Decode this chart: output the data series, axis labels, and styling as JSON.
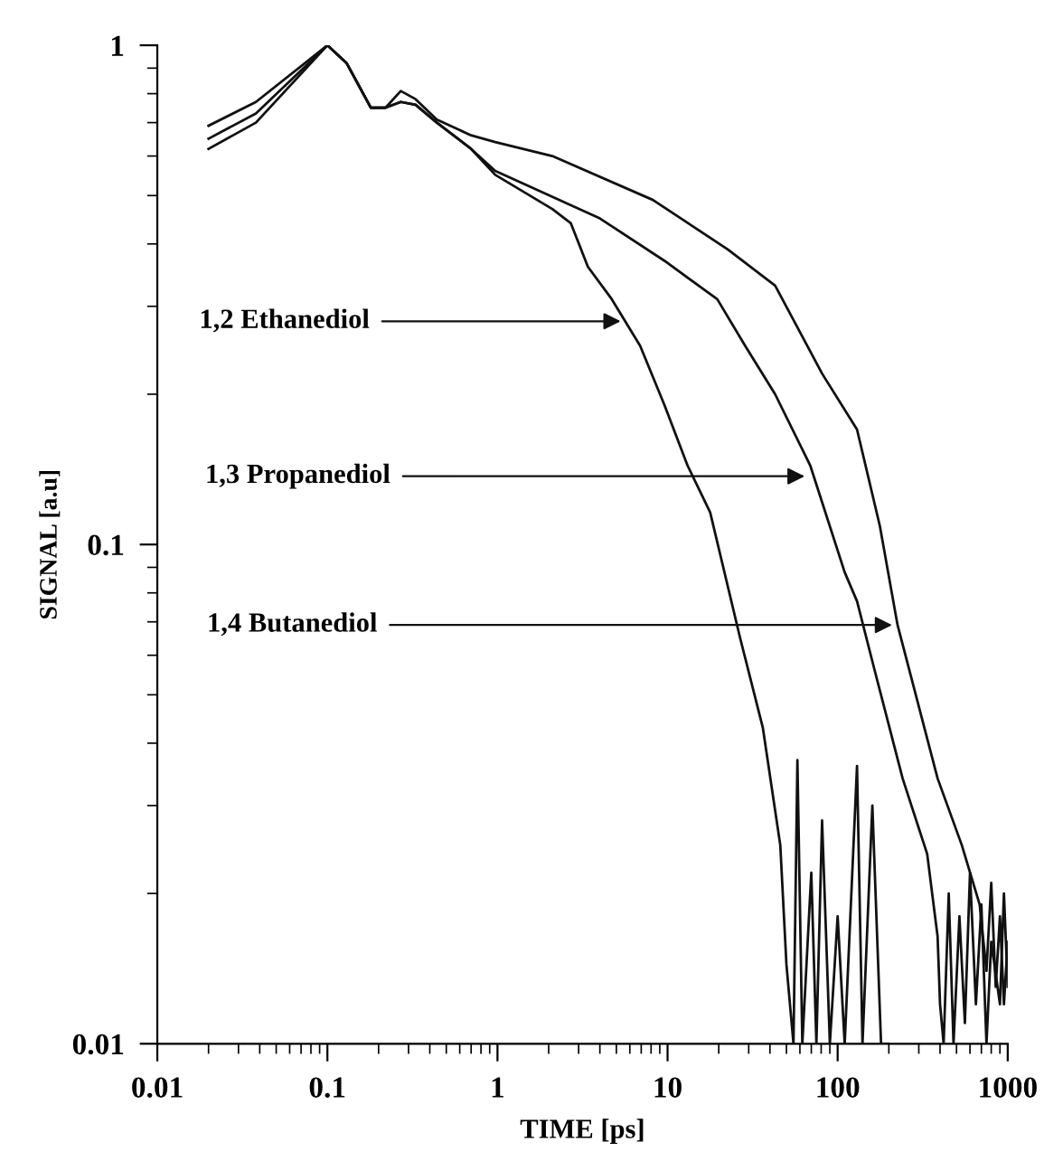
{
  "chart_data": {
    "type": "line",
    "xlabel": "TIME [ps]",
    "ylabel": "SIGNAL [a.u]",
    "log": "xy",
    "grid": false,
    "legend": false,
    "marker": "none",
    "line_style": "solid",
    "xlim": [
      0.01,
      1000
    ],
    "ylim": [
      0.01,
      1
    ],
    "xticks": [
      0.01,
      0.1,
      1,
      10,
      100,
      1000
    ],
    "yticks": [
      0.01,
      0.1,
      1
    ],
    "series": [
      {
        "color": "#111111",
        "x": [
          0.02,
          0.038,
          0.1,
          0.13,
          0.18,
          0.22,
          0.27,
          0.33,
          0.44,
          0.7,
          0.97,
          2.1,
          2.7,
          3.4,
          4.7,
          6.9,
          9.6,
          13.1,
          17.8,
          26.7,
          36.3,
          46,
          50,
          55,
          58,
          62,
          70,
          75,
          81,
          90,
          100,
          110,
          130,
          140,
          160,
          180,
          200
        ],
        "values": [
          0.62,
          0.7,
          1,
          0.92,
          0.75,
          0.75,
          0.77,
          0.76,
          0.7,
          0.62,
          0.55,
          0.47,
          0.44,
          0.36,
          0.31,
          0.25,
          0.19,
          0.144,
          0.116,
          0.065,
          0.043,
          0.025,
          0.0144,
          0.01,
          0.037,
          0.01,
          0.022,
          0.01,
          0.028,
          0.01,
          0.018,
          0.01,
          0.036,
          0.01,
          0.03,
          0.01,
          0.01
        ]
      },
      {
        "color": "#111111",
        "x": [
          0.02,
          0.038,
          0.1,
          0.13,
          0.18,
          0.22,
          0.27,
          0.33,
          0.44,
          0.7,
          0.97,
          4.0,
          9.6,
          19.6,
          28.6,
          42.9,
          69,
          110,
          130,
          165,
          241,
          336,
          387,
          400,
          420,
          450,
          480,
          520,
          560,
          600,
          650,
          700,
          750,
          800,
          900,
          950,
          1000
        ],
        "values": [
          0.65,
          0.73,
          1,
          0.92,
          0.75,
          0.75,
          0.77,
          0.76,
          0.7,
          0.62,
          0.56,
          0.45,
          0.37,
          0.31,
          0.25,
          0.2,
          0.144,
          0.088,
          0.077,
          0.056,
          0.034,
          0.024,
          0.0164,
          0.012,
          0.01,
          0.02,
          0.01,
          0.018,
          0.011,
          0.022,
          0.012,
          0.019,
          0.01,
          0.016,
          0.012,
          0.02,
          0.013
        ]
      },
      {
        "color": "#111111",
        "x": [
          0.02,
          0.038,
          0.1,
          0.13,
          0.18,
          0.22,
          0.27,
          0.33,
          0.44,
          0.7,
          0.97,
          2.1,
          8.2,
          22.6,
          42.9,
          81,
          130,
          177,
          225,
          387,
          537,
          684,
          750,
          800,
          850,
          900,
          950,
          1000
        ],
        "values": [
          0.69,
          0.77,
          1,
          0.92,
          0.75,
          0.75,
          0.81,
          0.78,
          0.71,
          0.66,
          0.64,
          0.6,
          0.49,
          0.39,
          0.33,
          0.22,
          0.17,
          0.109,
          0.069,
          0.034,
          0.025,
          0.019,
          0.014,
          0.021,
          0.013,
          0.018,
          0.012,
          0.016
        ]
      }
    ],
    "annotations": [
      {
        "text": "1,2 Ethanediol",
        "x": 5.3,
        "y": 0.28
      },
      {
        "text": "1,3 Propanediol",
        "x": 64,
        "y": 0.137
      },
      {
        "text": "1,4 Butanediol",
        "x": 209,
        "y": 0.069
      }
    ]
  }
}
